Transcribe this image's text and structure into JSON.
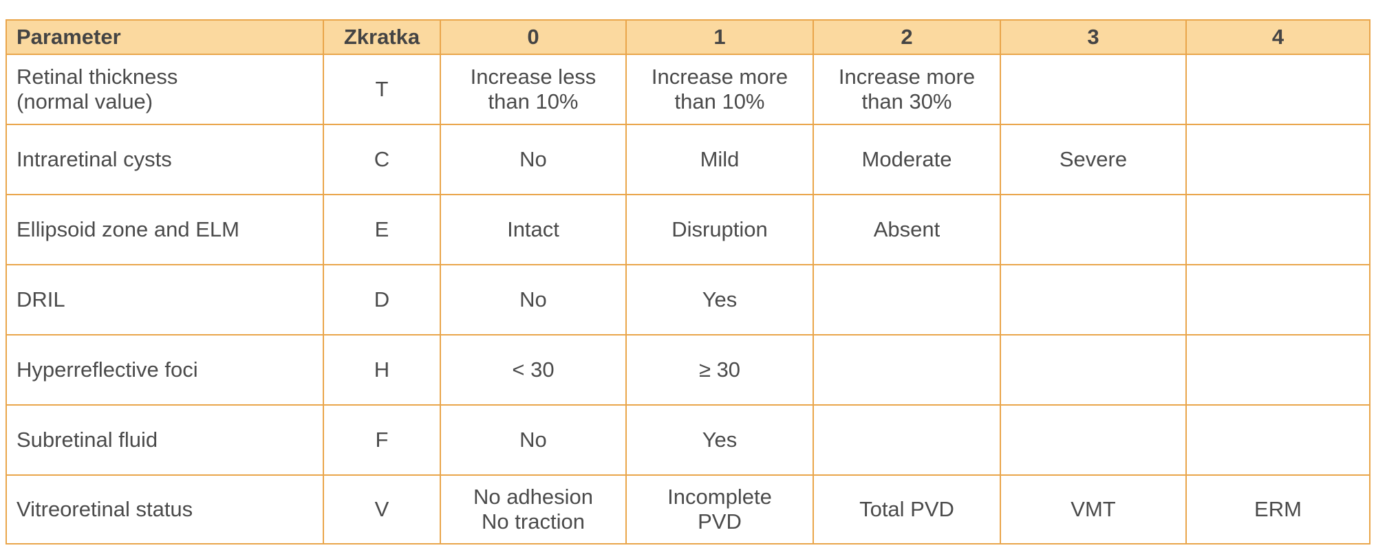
{
  "table": {
    "headers": [
      "Parameter",
      "Zkratka",
      "0",
      "1",
      "2",
      "3",
      "4"
    ],
    "rows": [
      {
        "parameter": [
          "Retinal thickness",
          "(normal value)"
        ],
        "abbr": "T",
        "c0": [
          "Increase less",
          "than 10%"
        ],
        "c1": [
          "Increase more",
          "than 10%"
        ],
        "c2": [
          "Increase more",
          "than 30%"
        ],
        "c3": [],
        "c4": []
      },
      {
        "parameter": [
          "Intraretinal cysts"
        ],
        "abbr": "C",
        "c0": [
          "No"
        ],
        "c1": [
          "Mild"
        ],
        "c2": [
          "Moderate"
        ],
        "c3": [
          "Severe"
        ],
        "c4": []
      },
      {
        "parameter": [
          "Ellipsoid zone and ELM"
        ],
        "abbr": "E",
        "c0": [
          "Intact"
        ],
        "c1": [
          "Disruption"
        ],
        "c2": [
          "Absent"
        ],
        "c3": [],
        "c4": []
      },
      {
        "parameter": [
          "DRIL"
        ],
        "abbr": "D",
        "c0": [
          "No"
        ],
        "c1": [
          "Yes"
        ],
        "c2": [],
        "c3": [],
        "c4": []
      },
      {
        "parameter": [
          "Hyperreflective foci"
        ],
        "abbr": "H",
        "c0": [
          "< 30"
        ],
        "c1": [
          "≥ 30"
        ],
        "c2": [],
        "c3": [],
        "c4": []
      },
      {
        "parameter": [
          "Subretinal fluid"
        ],
        "abbr": "F",
        "c0": [
          "No"
        ],
        "c1": [
          "Yes"
        ],
        "c2": [],
        "c3": [],
        "c4": []
      },
      {
        "parameter": [
          "Vitreoretinal status"
        ],
        "abbr": "V",
        "c0": [
          "No adhesion",
          "No traction"
        ],
        "c1": [
          "Incomplete",
          "PVD"
        ],
        "c2": [
          "Total PVD"
        ],
        "c3": [
          "VMT"
        ],
        "c4": [
          "ERM"
        ]
      }
    ]
  },
  "colors": {
    "header_bg": "#fbd99f",
    "border": "#e9a54a",
    "text": "#4a4a4a"
  }
}
